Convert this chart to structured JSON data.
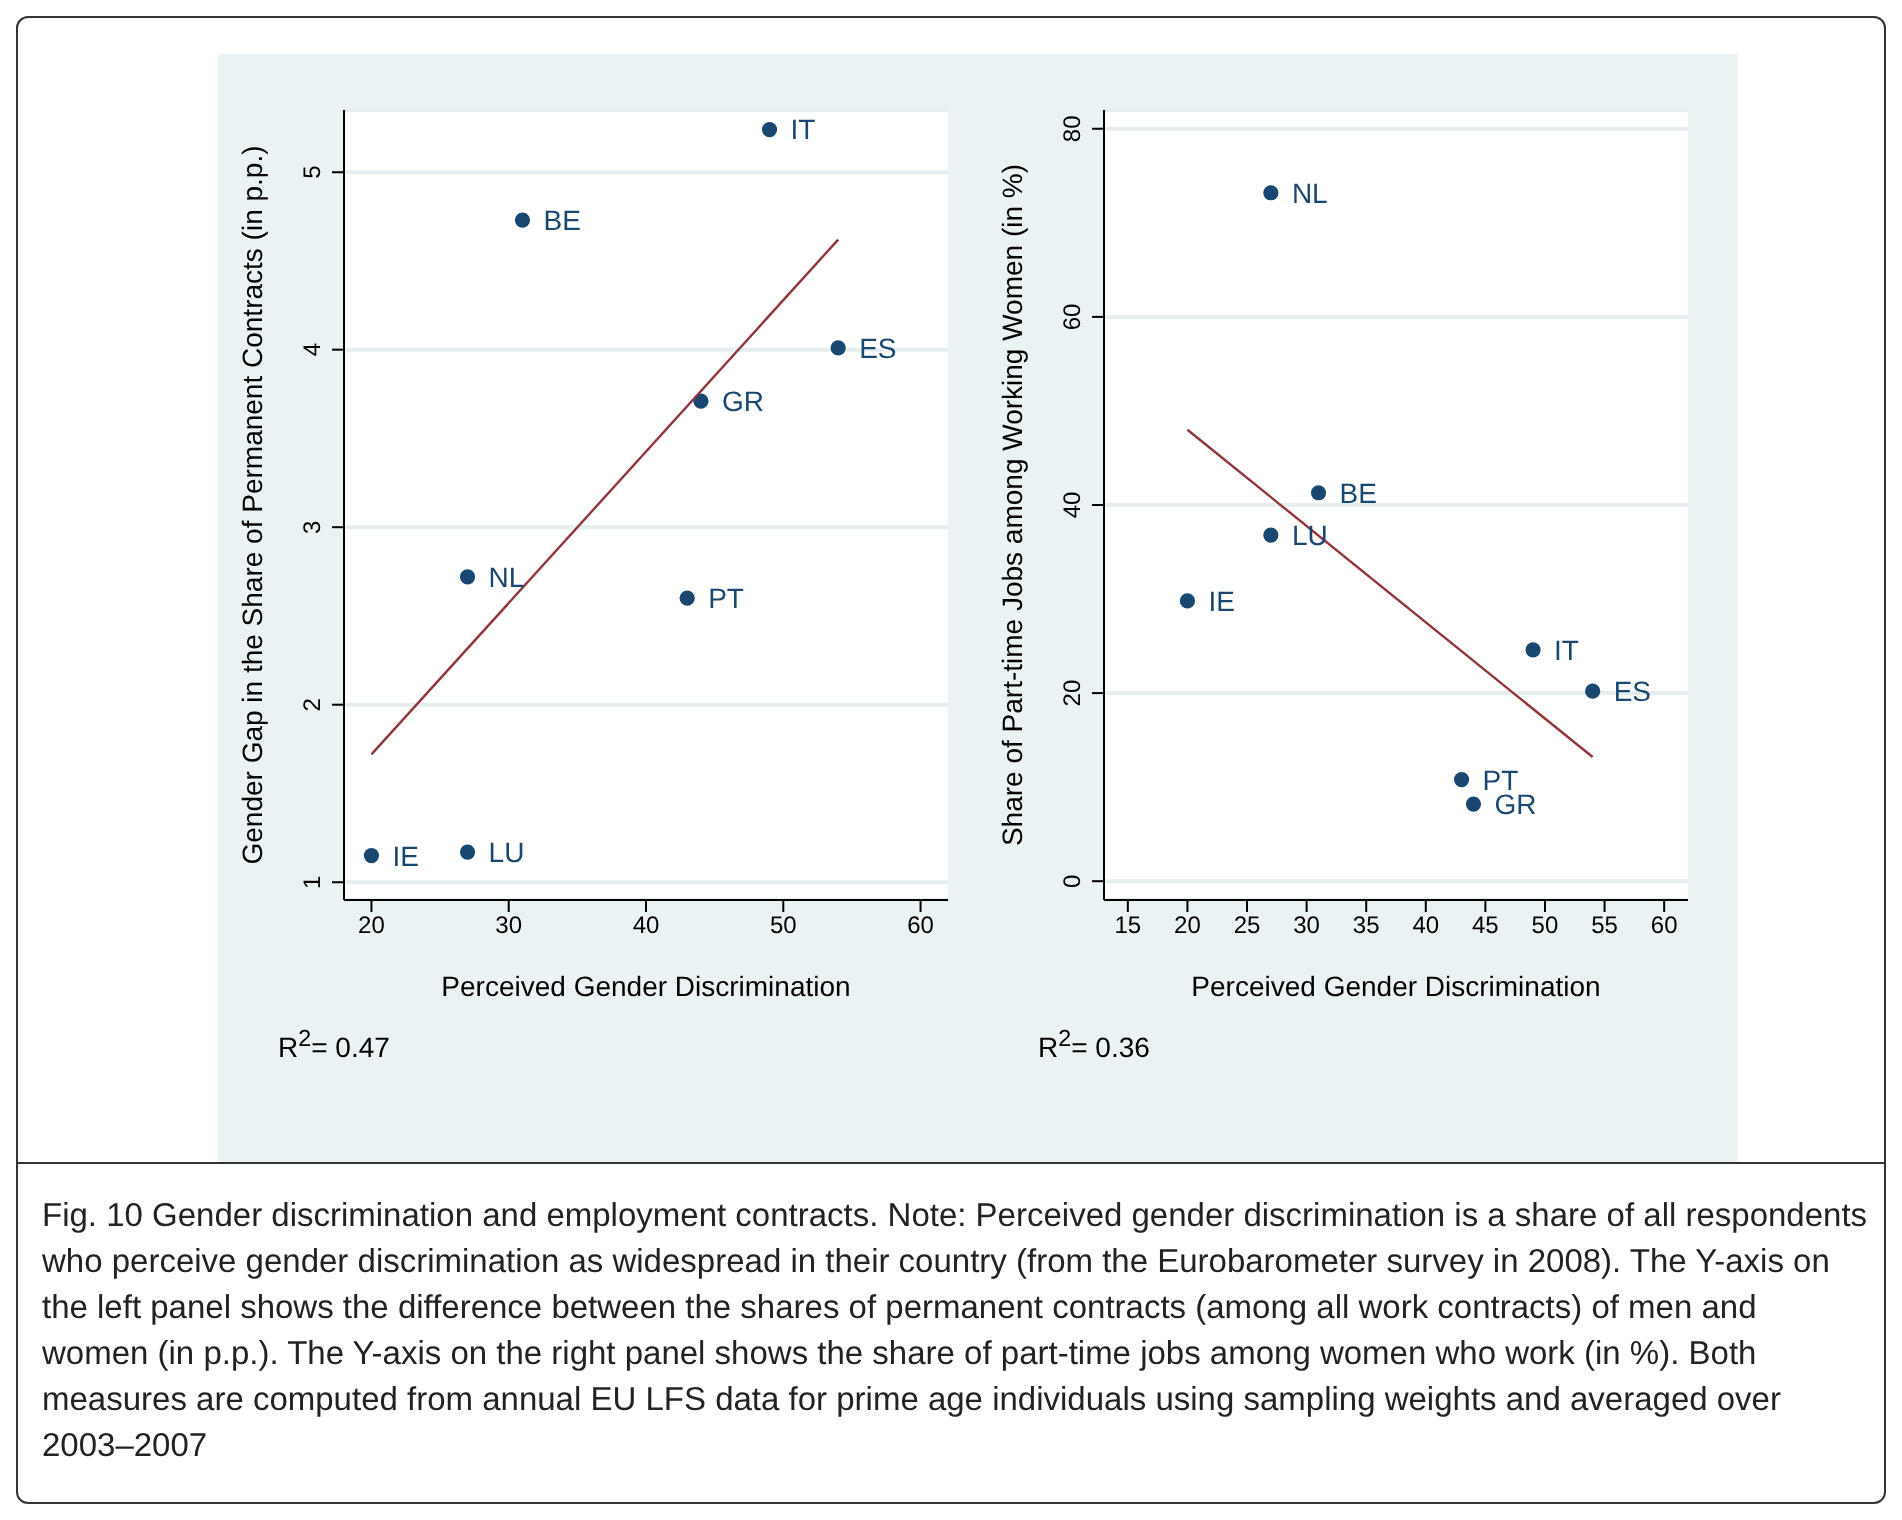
{
  "chart_data": [
    {
      "type": "scatter",
      "xlabel": "Perceived Gender Discrimination",
      "ylabel": "Gender Gap in the Share of Permanent Contracts (in p.p.)",
      "xlim": [
        18,
        62
      ],
      "xticks": [
        20,
        30,
        40,
        50,
        60
      ],
      "ylim": [
        0.9,
        5.35
      ],
      "yticks": [
        1,
        2,
        3,
        4,
        5
      ],
      "grid": "y",
      "series": [
        {
          "marker": "circle",
          "color": "#1a476f",
          "x": [
            20,
            27,
            27,
            31,
            44,
            43,
            54,
            49
          ],
          "values": [
            1.15,
            1.17,
            2.72,
            4.73,
            3.71,
            2.6,
            4.01,
            5.24
          ],
          "value_labels": [
            "IE",
            "LU",
            "NL",
            "BE",
            "GR",
            "PT",
            "ES",
            "IT"
          ]
        },
        {
          "type": "line",
          "color": "#90353b",
          "x": [
            20,
            54
          ],
          "values": [
            1.72,
            4.62
          ]
        }
      ],
      "annotations": [
        "R$^{2}$= 0.47",
        "Fig. 10  Gender discrimination and employment contracts. Note: Perceived gender discrimination is a share of all respondents who perceive gender discrimination as widespread in their country (from the Eurobarometer survey in 2008). The Y-axis on the left panel shows the difference between the shares of permanent contracts (among all work contracts) of men and women (in p.p.). The Y-axis on the right panel shows the share of part-time jobs among women who work (in %). Both measures are computed from annual EU LFS data for prime age individuals using sampling weights and averaged over 2003–2007"
      ]
    },
    {
      "type": "scatter",
      "xlabel": "Perceived Gender Discrimination",
      "ylabel": "Share of Part-time Jobs among Working Women (in %)",
      "xlim": [
        13,
        62
      ],
      "xticks": [
        15,
        20,
        25,
        30,
        35,
        40,
        45,
        50,
        55,
        60
      ],
      "ylim": [
        -2,
        82
      ],
      "yticks": [
        0,
        20,
        40,
        60,
        80
      ],
      "grid": "y",
      "series": [
        {
          "marker": "circle",
          "color": "#1a476f",
          "x": [
            27,
            31,
            27,
            20,
            49,
            54,
            43,
            44
          ],
          "values": [
            73.2,
            41.3,
            36.8,
            29.8,
            24.6,
            20.2,
            10.8,
            8.2
          ],
          "value_labels": [
            "NL",
            "BE",
            "LU",
            "IE",
            "IT",
            "ES",
            "PT",
            "GR"
          ]
        },
        {
          "type": "line",
          "color": "#90353b",
          "x": [
            20,
            54
          ],
          "values": [
            48,
            13.2
          ]
        }
      ],
      "annotations": [
        "R$^{2}$= 0.36"
      ]
    }
  ]
}
